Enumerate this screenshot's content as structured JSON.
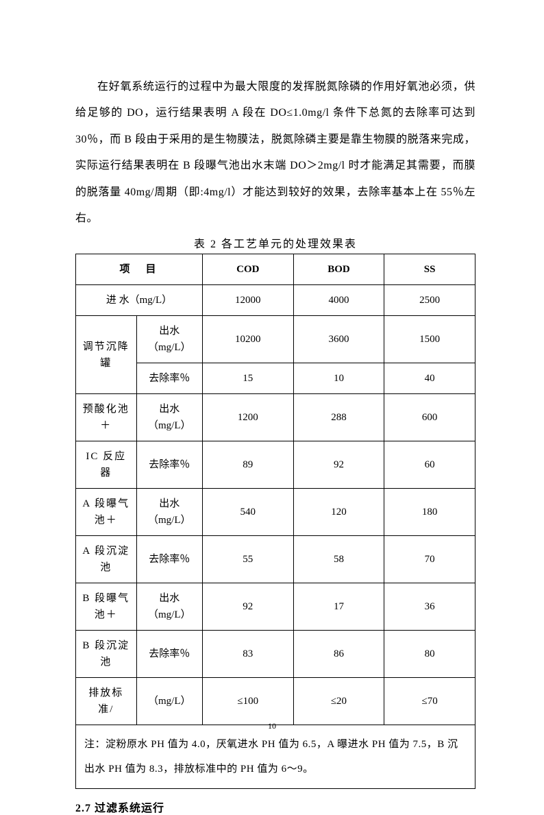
{
  "paragraph": "在好氧系统运行的过程中为最大限度的发挥脱氮除磷的作用好氧池必须，供给足够的 DO，运行结果表明 A 段在 DO≤1.0mg/l 条件下总氮的去除率可达到 30％，而 B 段由于采用的是生物膜法，脱氮除磷主要是靠生物膜的脱落来完成，实际运行结果表明在 B 段曝气池出水末端 DO＞2mg/l 时才能满足其需要，而膜的脱落量 40mg/周期（即:4mg/l）才能达到较好的效果，去除率基本上在 55％左右。",
  "table_caption": "表 2  各工艺单元的处理效果表",
  "header": {
    "item": "项　目",
    "cod": "COD",
    "bod": "BOD",
    "ss": "SS"
  },
  "influent": {
    "label": "进 水（mg/L）",
    "cod": "12000",
    "bod": "4000",
    "ss": "2500"
  },
  "effluent_label": "出水（mg/L）",
  "removal_label": "去除率％",
  "unit1": {
    "name": "调节沉降罐",
    "effluent": {
      "cod": "10200",
      "bod": "3600",
      "ss": "1500"
    },
    "removal": {
      "cod": "15",
      "bod": "10",
      "ss": "40"
    }
  },
  "unit2": {
    "name1": "预酸化池＋",
    "name2": "IC 反应器",
    "effluent": {
      "cod": "1200",
      "bod": "288",
      "ss": "600"
    },
    "removal": {
      "cod": "89",
      "bod": "92",
      "ss": "60"
    }
  },
  "unit3": {
    "name1": "A 段曝气池＋",
    "name2": "A 段沉淀池",
    "effluent": {
      "cod": "540",
      "bod": "120",
      "ss": "180"
    },
    "removal": {
      "cod": "55",
      "bod": "58",
      "ss": "70"
    }
  },
  "unit4": {
    "name1": "B 段曝气池＋",
    "name2": "B 段沉淀池",
    "effluent": {
      "cod": "92",
      "bod": "17",
      "ss": "36"
    },
    "removal": {
      "cod": "83",
      "bod": "86",
      "ss": "80"
    }
  },
  "standard": {
    "label1": "排放标准/",
    "label2": "（mg/L）",
    "cod": "≤100",
    "bod": "≤20",
    "ss": "≤70"
  },
  "note": "注：淀粉原水 PH 值为 4.0，厌氧进水 PH 值为 6.5，A 曝进水 PH 值为 7.5，B 沉出水 PH 值为 8.3，排放标准中的 PH 值为 6～9。",
  "section_heading": "2.7 过滤系统运行",
  "page_number": "10"
}
